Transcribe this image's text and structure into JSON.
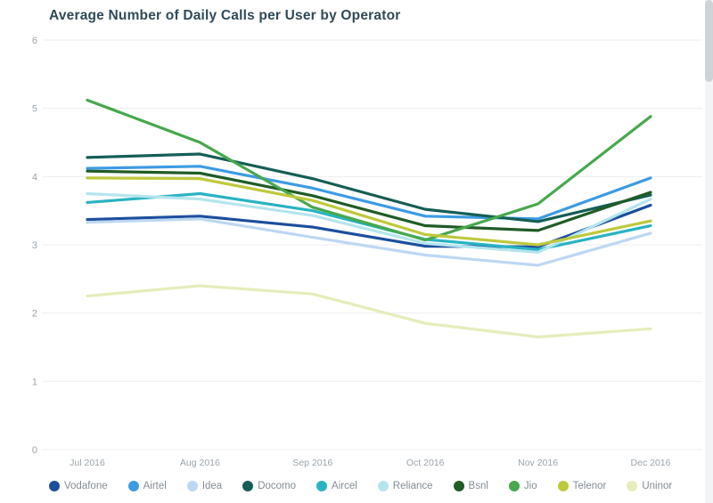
{
  "title": "Average Number of Daily Calls per User by Operator",
  "colors": {
    "title": "#2f4a58",
    "axis_labels": "#9aa4ac",
    "gridline": "#ededed",
    "legend_label": "#848d94"
  },
  "chart_data": {
    "type": "line",
    "title": "Average Number of Daily Calls per User by Operator",
    "xlabel": "",
    "ylabel": "",
    "x": [
      "Jul 2016",
      "Aug 2016",
      "Sep 2016",
      "Oct 2016",
      "Nov 2016",
      "Dec 2016"
    ],
    "ylim": [
      0,
      6
    ],
    "yticks": [
      0,
      1,
      2,
      3,
      4,
      5,
      6
    ],
    "grid": true,
    "legend_position": "bottom",
    "series": [
      {
        "name": "Vodafone",
        "color": "#1c4e9d",
        "values": [
          3.37,
          3.42,
          3.26,
          2.98,
          2.97,
          3.58
        ]
      },
      {
        "name": "Airtel",
        "color": "#3d9be3",
        "values": [
          4.12,
          4.15,
          3.83,
          3.42,
          3.38,
          3.98
        ]
      },
      {
        "name": "Idea",
        "color": "#bdd7f2",
        "values": [
          3.33,
          3.38,
          3.11,
          2.85,
          2.7,
          3.17
        ]
      },
      {
        "name": "Docomo",
        "color": "#155e56",
        "values": [
          4.28,
          4.33,
          3.97,
          3.52,
          3.34,
          3.73
        ]
      },
      {
        "name": "Aircel",
        "color": "#29b3c3",
        "values": [
          3.62,
          3.75,
          3.5,
          3.08,
          2.93,
          3.28
        ]
      },
      {
        "name": "Reliance",
        "color": "#b4e5ee",
        "values": [
          3.75,
          3.67,
          3.43,
          3.02,
          2.89,
          3.67
        ]
      },
      {
        "name": "Bsnl",
        "color": "#205c26",
        "values": [
          4.08,
          4.05,
          3.72,
          3.28,
          3.21,
          3.77
        ]
      },
      {
        "name": "Jio",
        "color": "#47a84d",
        "values": [
          5.12,
          4.5,
          3.55,
          3.07,
          3.6,
          4.88
        ]
      },
      {
        "name": "Telenor",
        "color": "#bec93c",
        "values": [
          3.98,
          3.97,
          3.65,
          3.15,
          3.0,
          3.35
        ]
      },
      {
        "name": "Uninor",
        "color": "#e6ecbb",
        "values": [
          2.25,
          2.4,
          2.28,
          1.85,
          1.65,
          1.77
        ]
      }
    ]
  }
}
